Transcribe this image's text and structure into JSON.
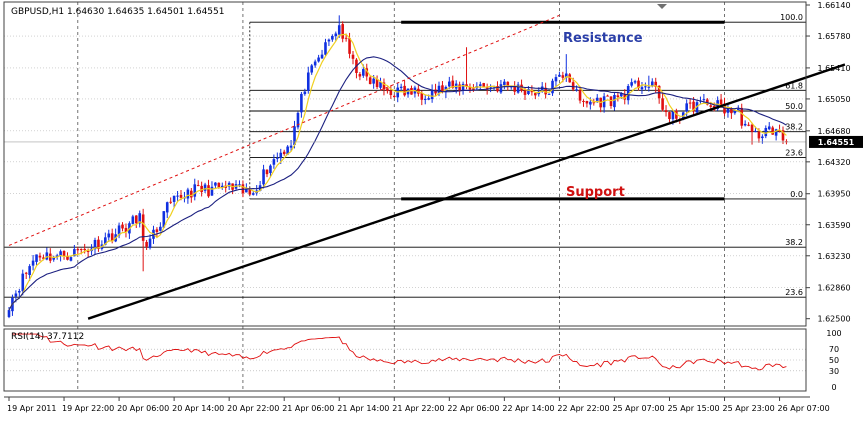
{
  "chart_data": {
    "type": "candlestick",
    "title": "GBPUSD,H1  1.64630 1.64635 1.64501 1.64551",
    "symbol": "GBPUSD",
    "timeframe": "H1",
    "ohlc_readout": {
      "open": "1.64630",
      "high": "1.64635",
      "low": "1.64501",
      "close": "1.64551"
    },
    "current_price": 1.64551,
    "current_price_label": "1.64551",
    "ylim": [
      1.6245,
      1.6614
    ],
    "yticks": [
      1.6614,
      1.6578,
      1.6541,
      1.6505,
      1.6468,
      1.6432,
      1.6395,
      1.6359,
      1.6323,
      1.6286,
      1.625
    ],
    "ytick_labels": [
      "1.66140",
      "1.65780",
      "1.65410",
      "1.65050",
      "1.64680",
      "1.64320",
      "1.63950",
      "1.63590",
      "1.63230",
      "1.62860",
      "1.62500"
    ],
    "x_labels": [
      "19 Apr 2011",
      "19 Apr 22:00",
      "20 Apr 06:00",
      "20 Apr 14:00",
      "20 Apr 22:00",
      "21 Apr 06:00",
      "21 Apr 14:00",
      "21 Apr 22:00",
      "22 Apr 06:00",
      "22 Apr 14:00",
      "22 Apr 22:00",
      "25 Apr 07:00",
      "25 Apr 15:00",
      "25 Apr 23:00",
      "26 Apr 07:00"
    ],
    "x_label_positions": [
      0,
      16,
      32,
      48,
      64,
      80,
      96,
      112,
      128,
      144,
      160,
      176,
      192,
      208,
      224
    ],
    "x_grid_positions": [
      20,
      68,
      112,
      160,
      208
    ],
    "fib_levels": [
      {
        "label": "100.0",
        "price": 1.6594
      },
      {
        "label": "61.8",
        "price": 1.6515
      },
      {
        "label": "50.0",
        "price": 1.6491
      },
      {
        "label": "38.2",
        "price": 1.6467
      },
      {
        "label": "23.6",
        "price": 1.6437
      },
      {
        "label": "0.0",
        "price": 1.6389
      },
      {
        "label": "38.2",
        "price": 1.6333
      },
      {
        "label": "23.6",
        "price": 1.6275
      }
    ],
    "annotations": [
      {
        "text": "Resistance",
        "color": "#2b3fa8"
      },
      {
        "text": "Support",
        "color": "#d01010"
      }
    ],
    "resistance_line": {
      "price": 1.6594,
      "from_index": 114,
      "to_index": 208
    },
    "support_line": {
      "price": 1.6389,
      "from_index": 114,
      "to_index": 208
    },
    "ascending_trendline": [
      {
        "index": 23,
        "price": 1.625
      },
      {
        "index": 243,
        "price": 1.6545
      }
    ],
    "dashed_channel_line": [
      {
        "index": 0,
        "price": 1.6335
      },
      {
        "index": 160,
        "price": 1.6602
      }
    ],
    "fib_swing_low_index": 70,
    "fib_swing_high_index": 96,
    "anchors": [
      {
        "i": 0,
        "p": 1.6268
      },
      {
        "i": 8,
        "p": 1.6325
      },
      {
        "i": 14,
        "p": 1.6322
      },
      {
        "i": 22,
        "p": 1.633
      },
      {
        "i": 32,
        "p": 1.6352
      },
      {
        "i": 38,
        "p": 1.6366
      },
      {
        "i": 40,
        "p": 1.633
      },
      {
        "i": 46,
        "p": 1.6378
      },
      {
        "i": 52,
        "p": 1.6398
      },
      {
        "i": 58,
        "p": 1.64
      },
      {
        "i": 64,
        "p": 1.6402
      },
      {
        "i": 70,
        "p": 1.6394
      },
      {
        "i": 76,
        "p": 1.643
      },
      {
        "i": 82,
        "p": 1.6456
      },
      {
        "i": 86,
        "p": 1.652
      },
      {
        "i": 90,
        "p": 1.6552
      },
      {
        "i": 94,
        "p": 1.6578
      },
      {
        "i": 96,
        "p": 1.659
      },
      {
        "i": 100,
        "p": 1.6545
      },
      {
        "i": 104,
        "p": 1.6528
      },
      {
        "i": 110,
        "p": 1.6514
      },
      {
        "i": 120,
        "p": 1.6512
      },
      {
        "i": 132,
        "p": 1.652
      },
      {
        "i": 144,
        "p": 1.652
      },
      {
        "i": 156,
        "p": 1.6512
      },
      {
        "i": 162,
        "p": 1.6538
      },
      {
        "i": 166,
        "p": 1.65
      },
      {
        "i": 176,
        "p": 1.6505
      },
      {
        "i": 184,
        "p": 1.6524
      },
      {
        "i": 188,
        "p": 1.6515
      },
      {
        "i": 192,
        "p": 1.648
      },
      {
        "i": 200,
        "p": 1.65
      },
      {
        "i": 206,
        "p": 1.6497
      },
      {
        "i": 212,
        "p": 1.6488
      },
      {
        "i": 216,
        "p": 1.6462
      },
      {
        "i": 222,
        "p": 1.647
      },
      {
        "i": 226,
        "p": 1.6455
      }
    ],
    "candle_count": 227,
    "bull_color": "#1030e0",
    "bear_color": "#e01010",
    "ma_fast_period": 5,
    "ma_fast_color": "#f0d020",
    "ma_slow_period": 20,
    "ma_slow_color": "#1c2080",
    "rsi": {
      "label": "RSI(14) 37.7112",
      "period": 14,
      "value": 37.7112,
      "ylim": [
        0,
        100
      ],
      "levels": [
        70,
        50,
        30
      ],
      "tick_labels": [
        "100",
        "70",
        "50",
        "30",
        "0"
      ],
      "tick_values": [
        100,
        70,
        50,
        30,
        0
      ],
      "color": "#e01010"
    }
  }
}
